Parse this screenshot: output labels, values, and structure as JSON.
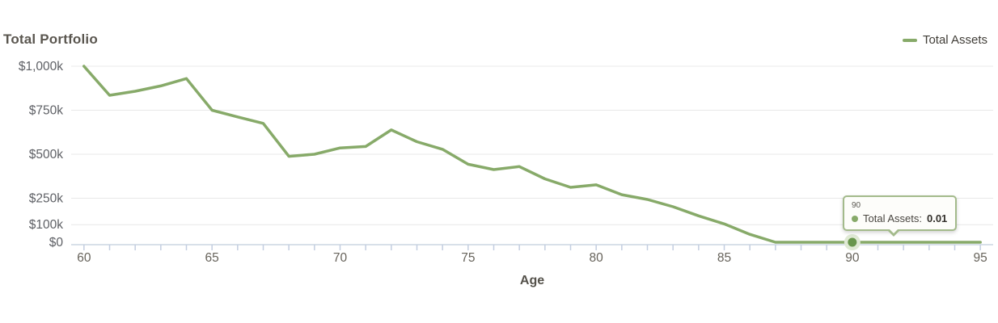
{
  "header": {
    "title": "Total Portfolio"
  },
  "legend": {
    "label": "Total Assets"
  },
  "xaxis": {
    "title": "Age"
  },
  "tooltip": {
    "age": "90",
    "series_label": "Total Assets:",
    "value": "0.01"
  },
  "colors": {
    "line": "#87aa69",
    "marker_dot": "#68964c",
    "marker_halo": "#dfe9d4",
    "gridline": "#e8e8e8",
    "axis_line": "#ccd5e2",
    "axis_tick": "#c3cee0",
    "tooltip_border": "#a3ba8b",
    "tooltip_bg": "#fdfdfa"
  },
  "chart_data": {
    "type": "line",
    "title": "Total Portfolio",
    "xlabel": "Age",
    "legend_entries": [
      "Total Assets"
    ],
    "legend_position": "top-right",
    "grid": true,
    "x_range": [
      59.5,
      95.5
    ],
    "y_range_thousands": [
      0,
      1000
    ],
    "x": [
      60,
      61,
      62,
      63,
      64,
      65,
      66,
      67,
      68,
      69,
      70,
      71,
      72,
      73,
      74,
      75,
      76,
      77,
      78,
      79,
      80,
      81,
      82,
      83,
      84,
      85,
      86,
      87,
      88,
      89,
      90,
      91,
      92,
      93,
      94,
      95
    ],
    "series": [
      {
        "name": "Total Assets",
        "values_thousands": [
          1000,
          835,
          858,
          888,
          930,
          750,
          712,
          675,
          488,
          500,
          536,
          544,
          638,
          571,
          528,
          443,
          413,
          430,
          360,
          312,
          326,
          270,
          243,
          202,
          150,
          104,
          45,
          0.01,
          0.01,
          0.01,
          0.01,
          0.01,
          0.01,
          0.01,
          0.01,
          0.01
        ]
      }
    ],
    "y_ticks": [
      {
        "value_thousands": 0,
        "label": "$0"
      },
      {
        "value_thousands": 100,
        "label": "$100k"
      },
      {
        "value_thousands": 250,
        "label": "$250k"
      },
      {
        "value_thousands": 500,
        "label": "$500k"
      },
      {
        "value_thousands": 750,
        "label": "$750k"
      },
      {
        "value_thousands": 1000,
        "label": "$1,000k"
      }
    ],
    "x_tick_labels": [
      60,
      65,
      70,
      75,
      80,
      85,
      90,
      95
    ],
    "x_minor_tick_every": 1,
    "highlighted_point": {
      "x": 90,
      "value_thousands": 0.01
    }
  }
}
